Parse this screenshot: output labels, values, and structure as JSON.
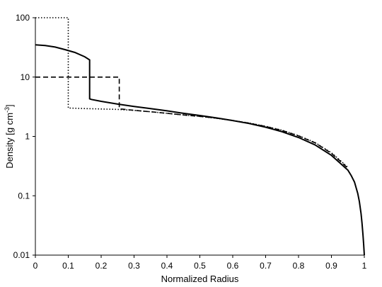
{
  "chart_data": {
    "type": "line",
    "title": "",
    "xlabel": "Normalized Radius",
    "ylabel_prefix": "Density [g cm",
    "ylabel_sup": "-3",
    "ylabel_suffix": "]",
    "xscale": "linear",
    "yscale": "log",
    "xlim": [
      0,
      1
    ],
    "ylim": [
      0.01,
      100
    ],
    "x_ticks": [
      "0",
      "0.1",
      "0.2",
      "0.3",
      "0.4",
      "0.5",
      "0.6",
      "0.7",
      "0.8",
      "0.9",
      "1"
    ],
    "y_ticks": [
      "100",
      "10",
      "1",
      "0.1",
      "0.01"
    ],
    "grid": false,
    "legend": "none",
    "series": [
      {
        "style": "solid",
        "color": "#000000",
        "x": [
          0,
          0.03,
          0.06,
          0.09,
          0.12,
          0.15,
          0.165,
          0.165,
          0.17,
          0.2,
          0.25,
          0.3,
          0.35,
          0.4,
          0.45,
          0.5,
          0.55,
          0.6,
          0.65,
          0.7,
          0.75,
          0.8,
          0.85,
          0.9,
          0.93,
          0.95,
          0.96,
          0.97,
          0.98,
          0.985,
          0.99,
          0.993,
          0.996,
          0.998,
          1.0
        ],
        "y": [
          35,
          34,
          32,
          29,
          26,
          22,
          19.5,
          4.3,
          4.2,
          3.9,
          3.5,
          3.2,
          2.95,
          2.7,
          2.45,
          2.25,
          2.05,
          1.85,
          1.65,
          1.43,
          1.2,
          0.96,
          0.72,
          0.48,
          0.34,
          0.27,
          0.22,
          0.17,
          0.11,
          0.08,
          0.05,
          0.035,
          0.022,
          0.015,
          0.01
        ]
      },
      {
        "style": "dashed",
        "color": "#000000",
        "x": [
          0,
          0.255,
          0.255,
          0.26,
          0.3,
          0.35,
          0.4,
          0.45,
          0.5,
          0.55,
          0.6,
          0.65,
          0.7,
          0.75,
          0.8,
          0.85,
          0.9,
          0.93,
          0.95
        ],
        "y": [
          10,
          10,
          2.95,
          2.9,
          2.75,
          2.6,
          2.45,
          2.3,
          2.18,
          2.03,
          1.85,
          1.67,
          1.47,
          1.26,
          1.02,
          0.78,
          0.52,
          0.37,
          0.29
        ]
      },
      {
        "style": "dotted",
        "color": "#000000",
        "x": [
          0,
          0.1,
          0.1,
          0.105,
          0.15,
          0.2,
          0.25,
          0.3,
          0.35,
          0.4,
          0.45,
          0.5,
          0.55,
          0.6,
          0.65,
          0.7,
          0.75,
          0.8,
          0.85,
          0.9,
          0.93,
          0.95
        ],
        "y": [
          100,
          100,
          3.0,
          3.0,
          2.95,
          2.9,
          2.85,
          2.75,
          2.6,
          2.45,
          2.3,
          2.17,
          2.02,
          1.85,
          1.68,
          1.48,
          1.27,
          1.03,
          0.79,
          0.53,
          0.38,
          0.3
        ]
      }
    ]
  }
}
